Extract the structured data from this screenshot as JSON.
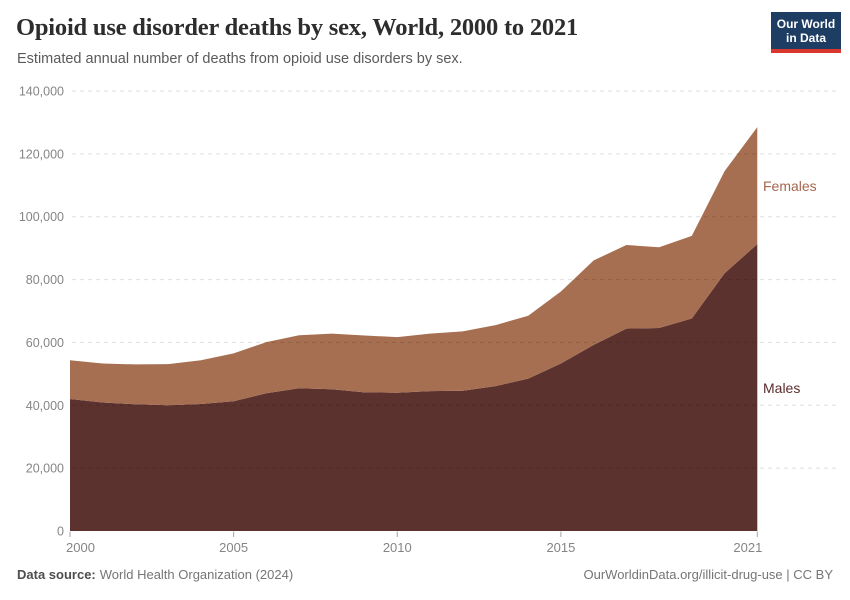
{
  "branding": {
    "logo_line1": "Our World",
    "logo_line2": "in Data",
    "logo_bg": "#1d3d63",
    "logo_accent": "#d9362e"
  },
  "chart_data": {
    "type": "area",
    "stacked": true,
    "title": "Opioid use disorder deaths by sex, World, 2000 to 2021",
    "subtitle": "Estimated annual number of deaths from opioid use disorders by sex.",
    "xlabel": "",
    "ylabel": "",
    "x": [
      2000,
      2001,
      2002,
      2003,
      2004,
      2005,
      2006,
      2007,
      2008,
      2009,
      2010,
      2011,
      2012,
      2013,
      2014,
      2015,
      2016,
      2017,
      2018,
      2019,
      2020,
      2021
    ],
    "series": [
      {
        "name": "Males",
        "color": "#5C322F",
        "label_color": "#5B2C2C",
        "values": [
          42000,
          40900,
          40300,
          40000,
          40400,
          41300,
          43800,
          45400,
          45100,
          44100,
          44000,
          44500,
          44600,
          46100,
          48500,
          53300,
          59200,
          64400,
          64600,
          67600,
          82000,
          91300
        ]
      },
      {
        "name": "Females",
        "color": "#A76F52",
        "label_color": "#A4674E",
        "values": [
          12300,
          12400,
          12700,
          13100,
          13900,
          15200,
          16300,
          16900,
          17700,
          18100,
          17700,
          18300,
          18900,
          19400,
          20000,
          22900,
          26900,
          26600,
          25700,
          26300,
          32500,
          37200
        ]
      }
    ],
    "ylim": [
      0,
      140000
    ],
    "y_ticks": [
      {
        "value": 0,
        "label": "0"
      },
      {
        "value": 20000,
        "label": "20,000"
      },
      {
        "value": 40000,
        "label": "40,000"
      },
      {
        "value": 60000,
        "label": "60,000"
      },
      {
        "value": 80000,
        "label": "80,000"
      },
      {
        "value": 100000,
        "label": "100,000"
      },
      {
        "value": 120000,
        "label": "120,000"
      },
      {
        "value": 140000,
        "label": "140,000"
      }
    ],
    "x_ticks": [
      {
        "value": 2000,
        "label": "2000"
      },
      {
        "value": 2005,
        "label": "2005"
      },
      {
        "value": 2010,
        "label": "2010"
      },
      {
        "value": 2015,
        "label": "2015"
      },
      {
        "value": 2021,
        "label": "2021"
      }
    ],
    "grid": true,
    "legend": "inline-right"
  },
  "footer": {
    "datasource_label": "Data source:",
    "datasource_value": "World Health Organization (2024)",
    "credit": "OurWorldinData.org/illicit-drug-use | CC BY"
  }
}
